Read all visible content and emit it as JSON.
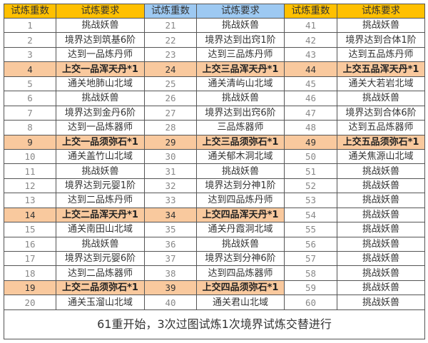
{
  "headers": [
    {
      "label": "试炼重数",
      "color": "#FFC000"
    },
    {
      "label": "试炼要求",
      "color": "#FFC000"
    },
    {
      "label": "试炼重数",
      "color": "#9DC9F2"
    },
    {
      "label": "试炼要求",
      "color": "#9DC9F2"
    },
    {
      "label": "试炼重数",
      "color": "#FFC000"
    },
    {
      "label": "试炼要求",
      "color": "#FFC000"
    }
  ],
  "highlight_color": "#F9C99E",
  "groups": [
    [
      {
        "n": "1",
        "t": "挑战妖兽",
        "hl": false
      },
      {
        "n": "2",
        "t": "境界达到筑基6阶",
        "hl": false
      },
      {
        "n": "3",
        "t": "达到一品炼丹师",
        "hl": false
      },
      {
        "n": "4",
        "t": "上交一品浑天丹*1",
        "hl": true
      },
      {
        "n": "5",
        "t": "通关地肺山北域",
        "hl": false
      },
      {
        "n": "6",
        "t": "挑战妖兽",
        "hl": false
      },
      {
        "n": "7",
        "t": "境界达到金丹6阶",
        "hl": false
      },
      {
        "n": "8",
        "t": "达到一品炼器师",
        "hl": false
      },
      {
        "n": "9",
        "t": "上交一品须弥石*1",
        "hl": true
      },
      {
        "n": "10",
        "t": "通关盖竹山北域",
        "hl": false
      },
      {
        "n": "11",
        "t": "挑战妖兽",
        "hl": false
      },
      {
        "n": "12",
        "t": "境界达到元婴1阶",
        "hl": false
      },
      {
        "n": "13",
        "t": "达到二品炼丹师",
        "hl": false
      },
      {
        "n": "14",
        "t": "上交二品浑天丹*1",
        "hl": true
      },
      {
        "n": "15",
        "t": "通关南田山北域",
        "hl": false
      },
      {
        "n": "16",
        "t": "挑战妖兽",
        "hl": false
      },
      {
        "n": "17",
        "t": "境界达到元婴6阶",
        "hl": false
      },
      {
        "n": "18",
        "t": "达到二品炼器师",
        "hl": false
      },
      {
        "n": "19",
        "t": "上交二品须弥石*1",
        "hl": true
      },
      {
        "n": "20",
        "t": "通关玉溜山北域",
        "hl": false
      }
    ],
    [
      {
        "n": "21",
        "t": "挑战妖兽",
        "hl": false
      },
      {
        "n": "22",
        "t": "境界达到出窍1阶",
        "hl": false
      },
      {
        "n": "23",
        "t": "达到三品炼丹师",
        "hl": false
      },
      {
        "n": "24",
        "t": "上交三品浑天丹*1",
        "hl": true
      },
      {
        "n": "25",
        "t": "通关清屿山北域",
        "hl": false
      },
      {
        "n": "26",
        "t": "挑战妖兽",
        "hl": false
      },
      {
        "n": "27",
        "t": "境界达到出窍6阶",
        "hl": false
      },
      {
        "n": "28",
        "t": "三品炼器师",
        "hl": false
      },
      {
        "n": "29",
        "t": "上交三品须弥石*1",
        "hl": true
      },
      {
        "n": "30",
        "t": "通关郁木洞北域",
        "hl": false
      },
      {
        "n": "31",
        "t": "挑战妖兽",
        "hl": false
      },
      {
        "n": "32",
        "t": "境界达到分神1阶",
        "hl": false
      },
      {
        "n": "33",
        "t": "达到四品炼丹师",
        "hl": false
      },
      {
        "n": "34",
        "t": "上交四品浑天丹*1",
        "hl": true
      },
      {
        "n": "35",
        "t": "通关丹霞洞北域",
        "hl": false
      },
      {
        "n": "36",
        "t": "挑战妖兽",
        "hl": false
      },
      {
        "n": "37",
        "t": "境界达到分神6阶",
        "hl": false
      },
      {
        "n": "38",
        "t": "达到四品炼器师",
        "hl": false
      },
      {
        "n": "39",
        "t": "上交四品须弥石*1",
        "hl": true
      },
      {
        "n": "40",
        "t": "通关君山北域",
        "hl": false
      }
    ],
    [
      {
        "n": "41",
        "t": "挑战妖兽",
        "hl": false
      },
      {
        "n": "42",
        "t": "境界达到合体1阶",
        "hl": false
      },
      {
        "n": "43",
        "t": "达到五品炼丹师",
        "hl": false
      },
      {
        "n": "44",
        "t": "上交五品浑天丹*1",
        "hl": true
      },
      {
        "n": "45",
        "t": "通关大若岩北域",
        "hl": false
      },
      {
        "n": "46",
        "t": "挑战妖兽",
        "hl": false
      },
      {
        "n": "47",
        "t": "境界达到合体6阶",
        "hl": false
      },
      {
        "n": "48",
        "t": "达到五品炼器师",
        "hl": false
      },
      {
        "n": "49",
        "t": "上交五品须弥石*1",
        "hl": true
      },
      {
        "n": "50",
        "t": "通关焦源山北域",
        "hl": false
      },
      {
        "n": "51",
        "t": "挑战妖兽",
        "hl": false
      },
      {
        "n": "52",
        "t": "挑战妖兽",
        "hl": false
      },
      {
        "n": "53",
        "t": "挑战妖兽",
        "hl": false
      },
      {
        "n": "54",
        "t": "挑战妖兽",
        "hl": false
      },
      {
        "n": "55",
        "t": "挑战妖兽",
        "hl": false
      },
      {
        "n": "56",
        "t": "挑战妖兽",
        "hl": false
      },
      {
        "n": "57",
        "t": "挑战妖兽",
        "hl": false
      },
      {
        "n": "58",
        "t": "挑战妖兽",
        "hl": false
      },
      {
        "n": "59",
        "t": "挑战妖兽",
        "hl": false
      },
      {
        "n": "60",
        "t": "挑战妖兽",
        "hl": false
      }
    ]
  ],
  "footer": "61重开始，3次过图试炼1次境界试炼交替进行"
}
